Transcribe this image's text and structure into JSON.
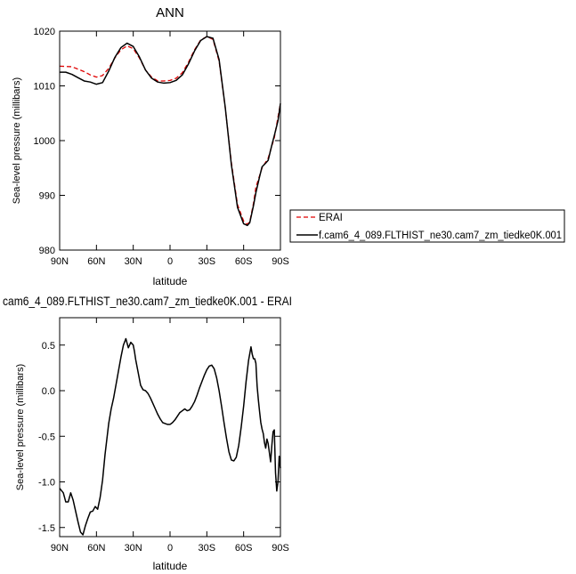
{
  "chart_data": [
    {
      "type": "line",
      "title": "ANN",
      "xlabel": "latitude",
      "ylabel": "Sea-level pressure (millibars)",
      "xlim": [
        -90,
        90
      ],
      "ylim": [
        980,
        1020
      ],
      "x_ticks": [
        {
          "value": -90,
          "label": "90N"
        },
        {
          "value": -60,
          "label": "60N"
        },
        {
          "value": -30,
          "label": "30N"
        },
        {
          "value": 0,
          "label": "0"
        },
        {
          "value": 30,
          "label": "30S"
        },
        {
          "value": 60,
          "label": "60S"
        },
        {
          "value": 90,
          "label": "90S"
        }
      ],
      "y_ticks": [
        {
          "value": 980,
          "label": "980"
        },
        {
          "value": 990,
          "label": "990"
        },
        {
          "value": 1000,
          "label": "1000"
        },
        {
          "value": 1010,
          "label": "1010"
        },
        {
          "value": 1020,
          "label": "1020"
        }
      ],
      "grid": false,
      "legend_placement": "right",
      "series": [
        {
          "name": "ERAI",
          "color": "#e00000",
          "dash": "dashed",
          "x": [
            -90,
            -80,
            -70,
            -65,
            -60,
            -55,
            -50,
            -45,
            -40,
            -35,
            -30,
            -25,
            -20,
            -15,
            -10,
            -5,
            0,
            5,
            10,
            15,
            20,
            25,
            30,
            35,
            40,
            45,
            50,
            55,
            60,
            63,
            65,
            68,
            70,
            75,
            80,
            85,
            90
          ],
          "y": [
            1013.6,
            1013.5,
            1012.6,
            1012.0,
            1011.6,
            1011.9,
            1013.2,
            1015.1,
            1016.6,
            1017.3,
            1016.8,
            1015.1,
            1012.9,
            1011.6,
            1010.9,
            1010.9,
            1011.0,
            1011.4,
            1012.4,
            1014.3,
            1016.6,
            1018.4,
            1019.0,
            1018.5,
            1014.5,
            1006.0,
            996.0,
            988.3,
            985.3,
            984.7,
            985.2,
            988.5,
            991.5,
            995.0,
            996.8,
            1000.5,
            1006.8
          ]
        },
        {
          "name": "f.cam6_4_089.FLTHIST_ne30.cam7_zm_tiedke0K.001",
          "color": "#000000",
          "dash": "solid",
          "x": [
            -90,
            -85,
            -80,
            -75,
            -70,
            -65,
            -60,
            -55,
            -50,
            -45,
            -40,
            -35,
            -30,
            -25,
            -20,
            -15,
            -10,
            -5,
            0,
            5,
            10,
            15,
            20,
            25,
            30,
            35,
            40,
            45,
            50,
            55,
            60,
            63,
            65,
            68,
            70,
            73,
            75,
            78,
            80,
            83,
            85,
            88,
            90
          ],
          "y": [
            1012.5,
            1012.5,
            1012.1,
            1011.5,
            1010.9,
            1010.7,
            1010.3,
            1010.6,
            1012.7,
            1015.2,
            1017.0,
            1017.8,
            1017.2,
            1015.3,
            1012.9,
            1011.4,
            1010.7,
            1010.5,
            1010.6,
            1011.0,
            1012.0,
            1014.0,
            1016.4,
            1018.3,
            1019.0,
            1018.7,
            1014.8,
            1006.1,
            995.6,
            987.8,
            984.8,
            984.5,
            985.0,
            988.1,
            990.5,
            993.4,
            995.2,
            995.9,
            996.4,
            999.2,
            1000.9,
            1003.6,
            1006.8
          ]
        }
      ]
    },
    {
      "type": "line",
      "title": "cam6_4_089.FLTHIST_ne30.cam7_zm_tiedke0K.001 - ERAI",
      "xlabel": "latitude",
      "ylabel": "Sea-level pressure (millibars)",
      "xlim": [
        -90,
        90
      ],
      "ylim": [
        -1.6,
        0.8
      ],
      "x_ticks": [
        {
          "value": -90,
          "label": "90N"
        },
        {
          "value": -60,
          "label": "60N"
        },
        {
          "value": -30,
          "label": "30N"
        },
        {
          "value": 0,
          "label": "0"
        },
        {
          "value": 30,
          "label": "30S"
        },
        {
          "value": 60,
          "label": "60S"
        },
        {
          "value": 90,
          "label": "90S"
        }
      ],
      "y_ticks": [
        {
          "value": -1.5,
          "label": "-1.5"
        },
        {
          "value": -1.0,
          "label": "-1.0"
        },
        {
          "value": -0.5,
          "label": "-0.5"
        },
        {
          "value": 0.0,
          "label": "0.0"
        },
        {
          "value": 0.5,
          "label": "0.5"
        }
      ],
      "grid": false,
      "series": [
        {
          "color": "#000000",
          "dash": "solid",
          "x": [
            -90,
            -87,
            -85,
            -83,
            -81,
            -79,
            -77,
            -75,
            -73,
            -71,
            -69,
            -67,
            -65,
            -63,
            -61,
            -59,
            -57,
            -55,
            -53,
            -50,
            -48,
            -46,
            -44,
            -42,
            -40,
            -38,
            -36,
            -34,
            -32,
            -30,
            -29,
            -28,
            -26,
            -24,
            -22,
            -20,
            -18,
            -16,
            -14,
            -12,
            -10,
            -8,
            -6,
            -4,
            -2,
            0,
            2,
            4,
            6,
            8,
            10,
            12,
            14,
            16,
            18,
            20,
            22,
            24,
            26,
            28,
            30,
            32,
            34,
            36,
            38,
            40,
            42,
            44,
            46,
            48,
            50,
            52,
            54,
            56,
            58,
            60,
            62,
            64,
            66,
            67,
            68,
            69,
            70,
            71,
            72,
            73,
            74,
            75,
            76,
            77,
            78,
            79,
            80,
            81,
            82,
            83,
            84,
            85,
            86,
            87,
            88,
            89,
            90
          ],
          "y": [
            -1.07,
            -1.12,
            -1.22,
            -1.22,
            -1.12,
            -1.2,
            -1.32,
            -1.44,
            -1.55,
            -1.58,
            -1.48,
            -1.4,
            -1.33,
            -1.32,
            -1.27,
            -1.3,
            -1.17,
            -0.98,
            -0.7,
            -0.36,
            -0.2,
            -0.08,
            0.07,
            0.22,
            0.37,
            0.5,
            0.57,
            0.47,
            0.53,
            0.5,
            0.43,
            0.34,
            0.2,
            0.06,
            0.01,
            0.0,
            -0.03,
            -0.08,
            -0.14,
            -0.2,
            -0.26,
            -0.31,
            -0.35,
            -0.36,
            -0.37,
            -0.37,
            -0.35,
            -0.32,
            -0.28,
            -0.24,
            -0.22,
            -0.2,
            -0.22,
            -0.21,
            -0.17,
            -0.12,
            -0.05,
            0.03,
            0.1,
            0.17,
            0.23,
            0.27,
            0.28,
            0.24,
            0.14,
            0.0,
            -0.17,
            -0.35,
            -0.52,
            -0.67,
            -0.76,
            -0.77,
            -0.73,
            -0.6,
            -0.4,
            -0.17,
            0.1,
            0.33,
            0.48,
            0.4,
            0.35,
            0.35,
            0.3,
            0.05,
            -0.1,
            -0.23,
            -0.35,
            -0.42,
            -0.47,
            -0.57,
            -0.63,
            -0.53,
            -0.58,
            -0.68,
            -0.78,
            -0.6,
            -0.45,
            -0.43,
            -0.9,
            -1.1,
            -1.0,
            -0.72,
            -0.85
          ]
        }
      ]
    }
  ]
}
